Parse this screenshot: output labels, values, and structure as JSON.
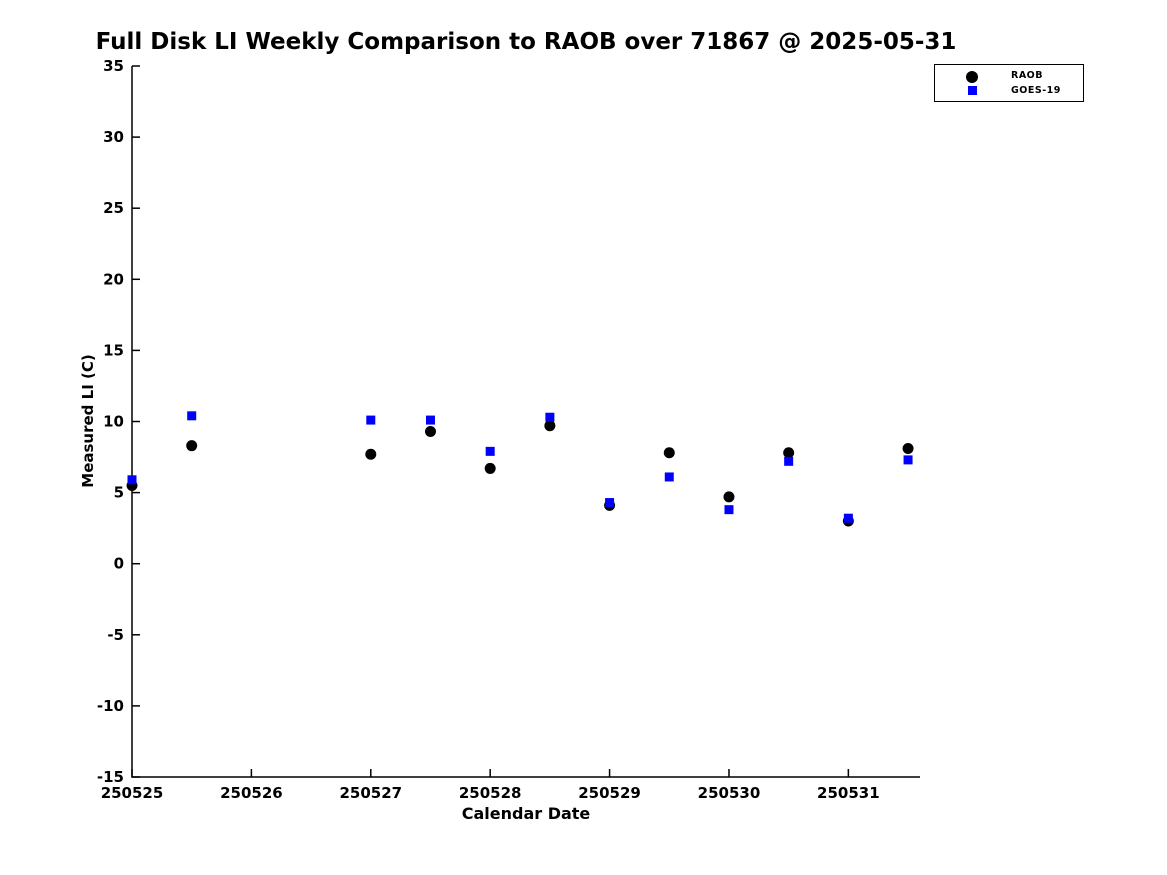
{
  "chart_data": {
    "type": "scatter",
    "title": "Full Disk LI Weekly Comparison to RAOB over 71867 @ 2025-05-31",
    "xlabel": "Calendar Date",
    "ylabel": "Measured LI (C)",
    "xlim": [
      250525,
      250531.6
    ],
    "ylim": [
      -15,
      35
    ],
    "x_tick_values": [
      250525,
      250526,
      250527,
      250528,
      250529,
      250530,
      250531
    ],
    "x_tick_labels": [
      "250525",
      "250526",
      "250527",
      "250528",
      "250529",
      "250530",
      "250531"
    ],
    "y_tick_values": [
      -15,
      -10,
      -5,
      0,
      5,
      10,
      15,
      20,
      25,
      30,
      35
    ],
    "y_tick_labels": [
      "-15",
      "-10",
      "-5",
      "0",
      "5",
      "10",
      "15",
      "20",
      "25",
      "30",
      "35"
    ],
    "grid": false,
    "axis_color": "#000000",
    "legend": {
      "position": "top-right",
      "entries": [
        "RAOB",
        "GOES-19"
      ]
    },
    "series": [
      {
        "name": "RAOB",
        "marker": "circle",
        "color": "#000000",
        "x": [
          250525.0,
          250525.5,
          250527.0,
          250527.5,
          250528.0,
          250528.5,
          250529.0,
          250529.5,
          250530.0,
          250530.5,
          250531.0,
          250531.5
        ],
        "y": [
          5.5,
          8.3,
          7.7,
          9.3,
          6.7,
          9.7,
          4.1,
          7.8,
          4.7,
          7.8,
          3.0,
          8.1
        ]
      },
      {
        "name": "GOES-19",
        "marker": "square",
        "color": "#0000ff",
        "x": [
          250525.0,
          250525.5,
          250527.0,
          250527.5,
          250528.0,
          250528.5,
          250529.0,
          250529.5,
          250530.0,
          250530.5,
          250531.0,
          250531.5
        ],
        "y": [
          5.9,
          10.4,
          10.1,
          10.1,
          7.9,
          10.3,
          4.3,
          6.1,
          3.8,
          7.2,
          3.2,
          7.3
        ]
      }
    ]
  }
}
